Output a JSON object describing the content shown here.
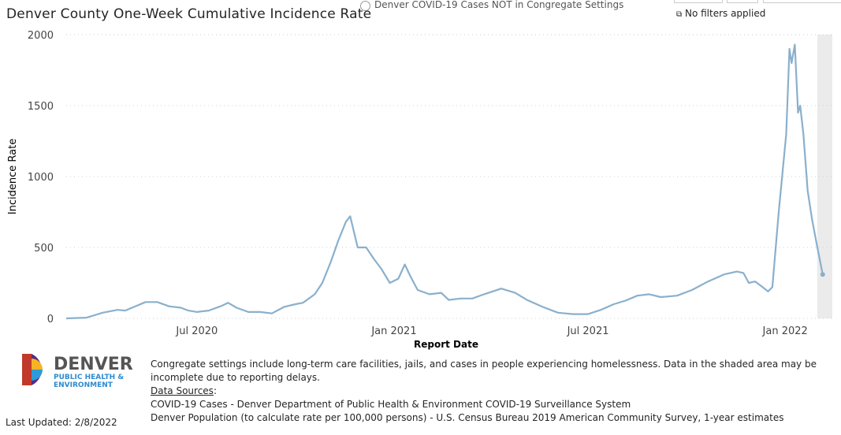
{
  "header": {
    "title": "Denver County One-Week Cumulative Incidence Rate",
    "radio_label": "Denver COVID-19 Cases NOT in Congregate Settings",
    "filters": "No filters applied",
    "filter_icon": "filter-icon"
  },
  "chart_data": {
    "type": "line",
    "title": "Denver County One-Week Cumulative Incidence Rate",
    "xlabel": "Report Date",
    "ylabel": "Incidence Rate",
    "ylim": [
      0,
      2000
    ],
    "yticks": [
      0,
      500,
      1000,
      1500,
      2000
    ],
    "xlim": [
      "2020-03-01",
      "2022-02-14"
    ],
    "xticks": [
      {
        "date": "2020-07-01",
        "label": "Jul 2020"
      },
      {
        "date": "2021-01-01",
        "label": "Jan 2021"
      },
      {
        "date": "2021-07-01",
        "label": "Jul 2021"
      },
      {
        "date": "2022-01-01",
        "label": "Jan 2022"
      }
    ],
    "grid": "horizontal dotted",
    "color": "#8AB0CC",
    "shaded_region": {
      "start": "2022-01-31",
      "end": "2022-02-14",
      "color": "#EBEBEB"
    },
    "points": [
      [
        "2020-03-01",
        0
      ],
      [
        "2020-03-20",
        5
      ],
      [
        "2020-04-04",
        40
      ],
      [
        "2020-04-18",
        60
      ],
      [
        "2020-04-25",
        55
      ],
      [
        "2020-05-03",
        80
      ],
      [
        "2020-05-14",
        115
      ],
      [
        "2020-05-25",
        115
      ],
      [
        "2020-06-05",
        85
      ],
      [
        "2020-06-16",
        75
      ],
      [
        "2020-06-23",
        55
      ],
      [
        "2020-07-01",
        45
      ],
      [
        "2020-07-12",
        55
      ],
      [
        "2020-07-23",
        85
      ],
      [
        "2020-07-30",
        110
      ],
      [
        "2020-08-07",
        75
      ],
      [
        "2020-08-18",
        45
      ],
      [
        "2020-08-29",
        45
      ],
      [
        "2020-09-09",
        35
      ],
      [
        "2020-09-20",
        80
      ],
      [
        "2020-10-01",
        100
      ],
      [
        "2020-10-08",
        110
      ],
      [
        "2020-10-19",
        170
      ],
      [
        "2020-10-26",
        250
      ],
      [
        "2020-11-03",
        400
      ],
      [
        "2020-11-10",
        550
      ],
      [
        "2020-11-17",
        680
      ],
      [
        "2020-11-21",
        720
      ],
      [
        "2020-11-28",
        500
      ],
      [
        "2020-12-06",
        500
      ],
      [
        "2020-12-13",
        420
      ],
      [
        "2020-12-20",
        350
      ],
      [
        "2020-12-28",
        250
      ],
      [
        "2021-01-05",
        280
      ],
      [
        "2021-01-11",
        380
      ],
      [
        "2021-01-16",
        300
      ],
      [
        "2021-01-23",
        200
      ],
      [
        "2021-02-03",
        170
      ],
      [
        "2021-02-14",
        180
      ],
      [
        "2021-02-21",
        130
      ],
      [
        "2021-03-04",
        140
      ],
      [
        "2021-03-15",
        140
      ],
      [
        "2021-03-26",
        170
      ],
      [
        "2021-04-11",
        210
      ],
      [
        "2021-04-24",
        180
      ],
      [
        "2021-05-05",
        130
      ],
      [
        "2021-05-20",
        80
      ],
      [
        "2021-06-03",
        40
      ],
      [
        "2021-06-17",
        30
      ],
      [
        "2021-07-01",
        30
      ],
      [
        "2021-07-13",
        60
      ],
      [
        "2021-07-25",
        100
      ],
      [
        "2021-08-05",
        125
      ],
      [
        "2021-08-16",
        160
      ],
      [
        "2021-08-27",
        170
      ],
      [
        "2021-09-07",
        150
      ],
      [
        "2021-09-22",
        160
      ],
      [
        "2021-10-06",
        200
      ],
      [
        "2021-10-21",
        260
      ],
      [
        "2021-11-05",
        310
      ],
      [
        "2021-11-17",
        330
      ],
      [
        "2021-11-23",
        320
      ],
      [
        "2021-11-28",
        250
      ],
      [
        "2021-12-04",
        260
      ],
      [
        "2021-12-11",
        220
      ],
      [
        "2021-12-16",
        190
      ],
      [
        "2021-12-20",
        220
      ],
      [
        "2021-12-26",
        750
      ],
      [
        "2022-01-02",
        1300
      ],
      [
        "2022-01-05",
        1900
      ],
      [
        "2022-01-07",
        1800
      ],
      [
        "2022-01-10",
        1930
      ],
      [
        "2022-01-13",
        1450
      ],
      [
        "2022-01-15",
        1500
      ],
      [
        "2022-01-18",
        1300
      ],
      [
        "2022-01-22",
        900
      ],
      [
        "2022-01-26",
        700
      ],
      [
        "2022-01-31",
        500
      ],
      [
        "2022-02-05",
        310
      ]
    ]
  },
  "logo": {
    "name": "DENVER",
    "sub1": "PUBLIC HEALTH &",
    "sub2": "ENVIRONMENT"
  },
  "footer": {
    "note": "Congregate settings include long-term care facilities, jails, and cases in people experiencing homelessness. Data in the shaded area may be incomplete due to reporting delays.",
    "sources_label": "Data Sources",
    "source1": "COVID-19 Cases - Denver Department of Public Health & Environment COVID-19 Surveillance System",
    "source2": "Denver Population (to calculate rate per 100,000 persons) - U.S. Census Bureau 2019 American Community Survey, 1-year estimates",
    "last_updated": "Last Updated: 2/8/2022"
  }
}
